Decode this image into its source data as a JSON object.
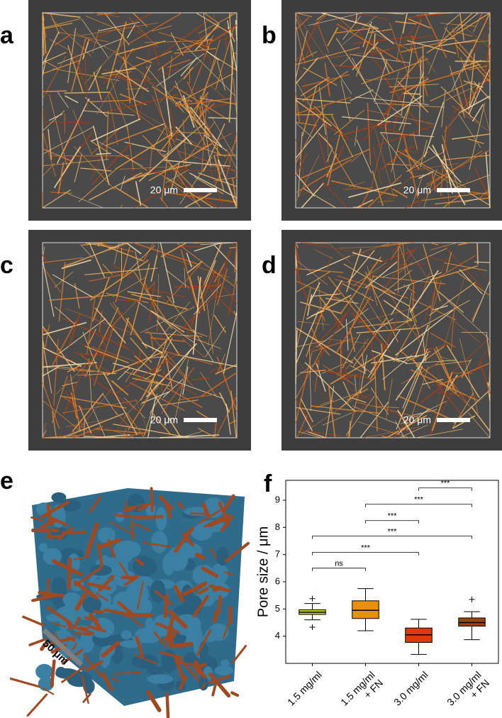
{
  "panels": [
    {
      "label": "a",
      "scale_bar": "20 μm"
    },
    {
      "label": "b",
      "scale_bar": "20 μm"
    },
    {
      "label": "c",
      "scale_bar": "20 μm"
    },
    {
      "label": "d",
      "scale_bar": "20 μm"
    }
  ],
  "panel_e": {
    "label": "e",
    "scale_bar": "50 μm"
  },
  "chart_data": {
    "type": "box",
    "panel_label": "f",
    "y_label": "Pore size / μm",
    "categories": [
      "1.5 mg/ml",
      "1.5 mg/ml\n+ FN",
      "3.0 mg/ml",
      "3.0 mg/ml\n+ FN"
    ],
    "boxes": [
      {
        "whislo": 4.6,
        "q1": 4.8,
        "median": 4.88,
        "q3": 4.97,
        "whishi": 5.2,
        "fliers": [
          5.38,
          4.33
        ],
        "color": "#c8d12f"
      },
      {
        "whislo": 4.2,
        "q1": 4.65,
        "median": 4.95,
        "q3": 5.3,
        "whishi": 5.75,
        "fliers": [],
        "color": "#e8900f"
      },
      {
        "whislo": 3.33,
        "q1": 3.77,
        "median": 4.05,
        "q3": 4.3,
        "whishi": 4.62,
        "fliers": [],
        "color": "#e03a0a"
      },
      {
        "whislo": 3.87,
        "q1": 4.37,
        "median": 4.5,
        "q3": 4.67,
        "whishi": 4.9,
        "fliers": [
          5.35
        ],
        "color": "#9a4210"
      }
    ],
    "brackets": [
      {
        "from": "1.5 mg/ml",
        "to": "1.5 mg/ml\n+ FN",
        "y": 6.5,
        "label": "ns"
      },
      {
        "from": "1.5 mg/ml",
        "to": "3.0 mg/ml",
        "y": 7.08,
        "label": "***"
      },
      {
        "from": "1.5 mg/ml",
        "to": "3.0 mg/ml\n+ FN",
        "y": 7.68,
        "label": "***"
      },
      {
        "from": "1.5 mg/ml\n+ FN",
        "to": "3.0 mg/ml",
        "y": 8.25,
        "label": "***"
      },
      {
        "from": "1.5 mg/ml\n+ FN",
        "to": "3.0 mg/ml\n+ FN",
        "y": 8.85,
        "label": "***"
      },
      {
        "from": "3.0 mg/ml",
        "to": "3.0 mg/ml\n+ FN",
        "y": 9.45,
        "label": "***"
      }
    ],
    "ylim": [
      3.0,
      9.73
    ],
    "yticks": [
      4,
      5,
      6,
      7,
      8,
      9
    ]
  }
}
